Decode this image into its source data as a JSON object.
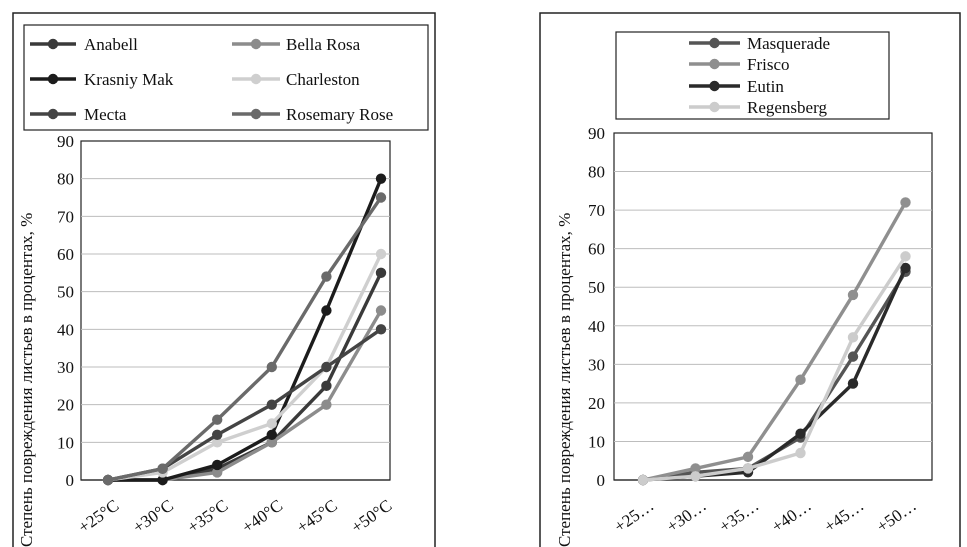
{
  "chart_data": [
    {
      "type": "line",
      "title": "",
      "ylabel": "Степень повреждения листьев в процентах, %",
      "xlabel": "",
      "categories": [
        "+25°C",
        "+30°C",
        "+35°C",
        "+40°C",
        "+45°C",
        "+50°C"
      ],
      "ylim": [
        0,
        90
      ],
      "yticks": [
        0,
        10,
        20,
        30,
        40,
        50,
        60,
        70,
        80,
        90
      ],
      "grid": true,
      "legend_position": "top",
      "series": [
        {
          "name": "Anabell",
          "color": "#3a3a3a",
          "values": [
            0,
            0,
            3,
            10,
            25,
            55
          ]
        },
        {
          "name": "Bella Rosa",
          "color": "#8c8c8c",
          "values": [
            0,
            0,
            2,
            10,
            20,
            45
          ]
        },
        {
          "name": "Krasniy Mak",
          "color": "#1c1c1c",
          "values": [
            0,
            0,
            4,
            12,
            45,
            80
          ]
        },
        {
          "name": "Charleston",
          "color": "#cfcfcf",
          "values": [
            0,
            2,
            10,
            15,
            30,
            60
          ]
        },
        {
          "name": "Mecta",
          "color": "#444444",
          "values": [
            0,
            3,
            12,
            20,
            30,
            40
          ]
        },
        {
          "name": "Rosemary Rose",
          "color": "#6a6a6a",
          "values": [
            0,
            3,
            16,
            30,
            54,
            75
          ]
        }
      ]
    },
    {
      "type": "line",
      "title": "",
      "ylabel": "Степень повреждения листьев в процентах, %",
      "xlabel": "",
      "categories": [
        "+25…",
        "+30…",
        "+35…",
        "+40…",
        "+45…",
        "+50…"
      ],
      "ylim": [
        0,
        90
      ],
      "yticks": [
        0,
        10,
        20,
        30,
        40,
        50,
        60,
        70,
        80,
        90
      ],
      "grid": true,
      "legend_position": "top",
      "series": [
        {
          "name": "Masquerade",
          "color": "#555555",
          "values": [
            0,
            2,
            3,
            11,
            32,
            54
          ]
        },
        {
          "name": "Frisco",
          "color": "#8f8f8f",
          "values": [
            0,
            3,
            6,
            26,
            48,
            72
          ]
        },
        {
          "name": "Eutin",
          "color": "#2a2a2a",
          "values": [
            0,
            1,
            2,
            12,
            25,
            55
          ]
        },
        {
          "name": "Regensberg",
          "color": "#cccccc",
          "values": [
            0,
            1,
            3,
            7,
            37,
            58
          ]
        }
      ]
    }
  ]
}
